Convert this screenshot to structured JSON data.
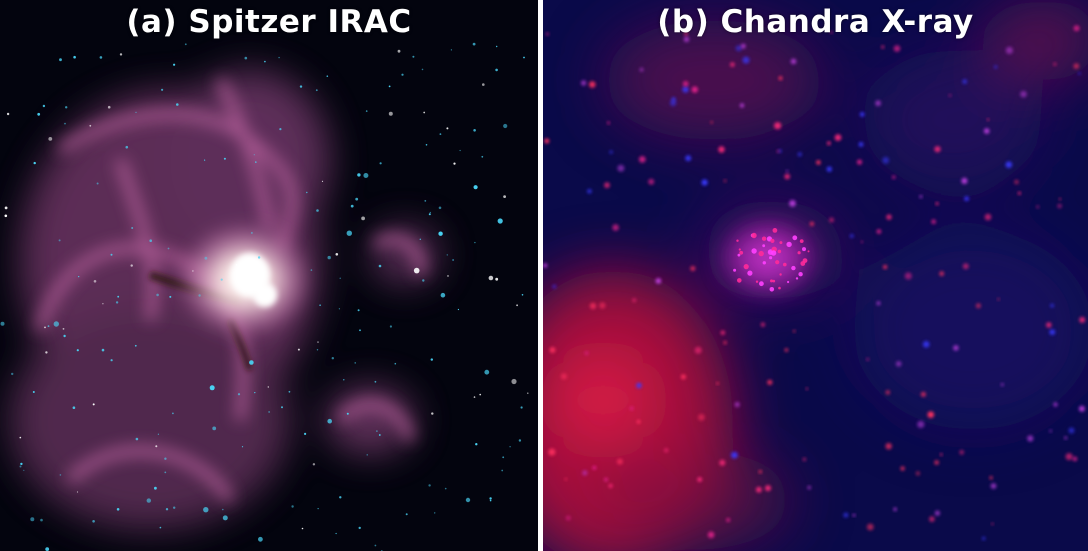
{
  "panels": [
    {
      "title": "(a) Spitzer IRAC"
    },
    {
      "title": "(b) Chandra X-ray"
    }
  ],
  "colors": {
    "irac_background": "#03040e",
    "irac_nebula": "#c06aa6",
    "irac_core": "#fff4ec",
    "irac_stars": "#49d4f5",
    "xray_background": "#0a0a4a",
    "xray_diffuse": "#e0103c",
    "xray_sources": "#ff2a7a",
    "divider": "#ffffff"
  }
}
